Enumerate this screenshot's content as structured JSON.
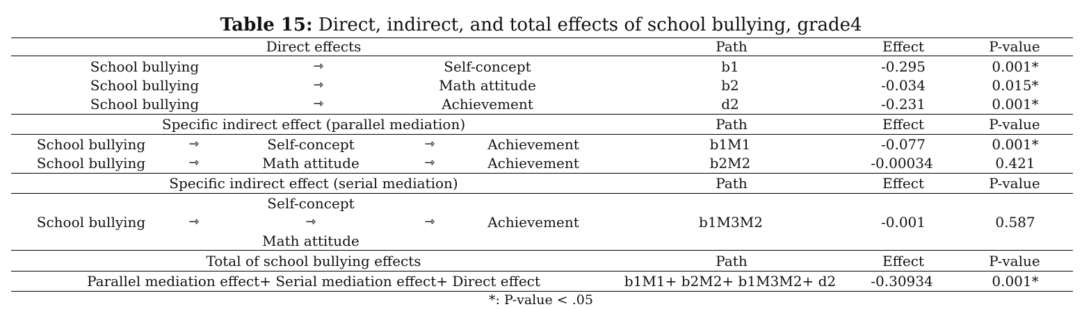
{
  "caption": {
    "label": "Table 15:",
    "text": "Direct, indirect, and total effects of school bullying, grade4"
  },
  "arrow": "⇾",
  "columns": {
    "path": "Path",
    "effect": "Effect",
    "pvalue": "P-value"
  },
  "sections": {
    "direct": {
      "title": "Direct effects",
      "rows": [
        {
          "from": "School bullying",
          "to": "Self-concept",
          "path": "b1",
          "effect": "-0.295",
          "pvalue": "0.001*"
        },
        {
          "from": "School bullying",
          "to": "Math attitude",
          "path": "b2",
          "effect": "-0.034",
          "pvalue": "0.015*"
        },
        {
          "from": "School bullying",
          "to": "Achievement",
          "path": "d2",
          "effect": "-0.231",
          "pvalue": "0.001*"
        }
      ]
    },
    "parallel": {
      "title": "Specific indirect effect (parallel mediation)",
      "rows": [
        {
          "from": "School bullying",
          "mediator": "Self-concept",
          "to": "Achievement",
          "path": "b1M1",
          "effect": "-0.077",
          "pvalue": "0.001*"
        },
        {
          "from": "School bullying",
          "mediator": "Math attitude",
          "to": "Achievement",
          "path": "b2M2",
          "effect": "-0.00034",
          "pvalue": "0.421"
        }
      ]
    },
    "serial": {
      "title": "Specific indirect effect (serial mediation)",
      "row": {
        "from": "School bullying",
        "mediator1": "Self-concept",
        "mediator2": "Math attitude",
        "to": "Achievement",
        "path": "b1M3M2",
        "effect": "-0.001",
        "pvalue": "0.587"
      }
    },
    "total": {
      "title": "Total of school bullying effects",
      "row": {
        "label": "Parallel mediation effect+ Serial mediation effect+ Direct effect",
        "path": "b1M1+ b2M2+ b1M3M2+ d2",
        "effect": "-0.30934",
        "pvalue": "0.001*"
      }
    }
  },
  "footnote": "*: P-value < .05"
}
